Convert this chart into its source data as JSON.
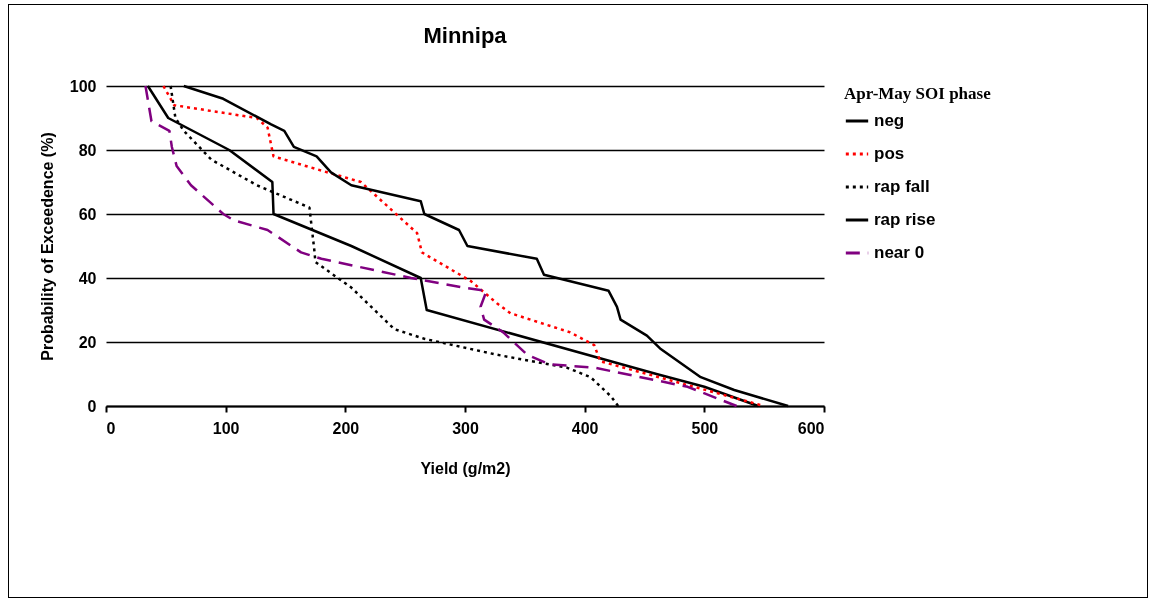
{
  "chart_data": {
    "type": "line",
    "title": "Minnipa",
    "xlabel": "Yield (g/m2)",
    "ylabel": "Probability of  Exceedence (%)",
    "legend_title": "Apr-May SOI phase",
    "legend": "right",
    "grid": "y",
    "xlim": [
      0,
      600
    ],
    "xticks": [
      0,
      100,
      200,
      300,
      400,
      500,
      600
    ],
    "ylim": [
      0,
      100
    ],
    "yticks": [
      0,
      20,
      40,
      60,
      80,
      100
    ],
    "series": [
      {
        "name": "neg",
        "color": "#000000",
        "line_style": "solid",
        "x": [
          35,
          52,
          103,
          139,
          140,
          205,
          263,
          268,
          460,
          500,
          545
        ],
        "values": [
          100,
          90,
          80,
          70,
          60,
          50,
          40,
          30,
          10,
          6,
          0
        ]
      },
      {
        "name": "pos",
        "color": "#ff0000",
        "line_style": "dotted",
        "x": [
          48,
          57,
          126,
          135,
          140,
          176,
          213,
          260,
          264,
          305,
          327,
          338,
          388,
          408,
          413,
          550
        ],
        "values": [
          100,
          94,
          90,
          87,
          78,
          74,
          70,
          54,
          48,
          39,
          32,
          29,
          23,
          19,
          14,
          0
        ]
      },
      {
        "name": "rap fall",
        "color": "#000000",
        "line_style": "dotted",
        "x": [
          54,
          58,
          65,
          88,
          126,
          170,
          174,
          175,
          205,
          241,
          266,
          327,
          385,
          405,
          422,
          428
        ],
        "values": [
          100,
          90,
          86,
          77,
          69,
          62,
          49,
          45,
          37,
          24,
          21,
          16,
          12,
          9,
          3,
          0
        ]
      },
      {
        "name": "rap rise",
        "color": "#000000",
        "line_style": "solid",
        "x": [
          65,
          98,
          138,
          149,
          157,
          176,
          188,
          205,
          263,
          266,
          295,
          302,
          360,
          366,
          420,
          427,
          430,
          452,
          463,
          497,
          525,
          570
        ],
        "values": [
          100,
          96,
          88,
          86,
          81,
          78,
          73,
          69,
          64,
          60,
          55,
          50,
          46,
          41,
          36,
          31,
          27,
          22,
          18,
          9,
          5,
          0
        ]
      },
      {
        "name": "near 0",
        "color": "#800080",
        "line_style": "dashed",
        "x": [
          33,
          38,
          53,
          55,
          59,
          71,
          98,
          107,
          135,
          163,
          180,
          255,
          299,
          318,
          313,
          316,
          332,
          352,
          371,
          408,
          486,
          527
        ],
        "values": [
          100,
          89,
          86,
          81,
          75,
          69,
          60,
          58,
          55,
          48,
          46,
          40,
          37,
          36,
          31,
          27,
          23,
          16,
          13,
          12,
          6,
          0
        ]
      }
    ]
  }
}
